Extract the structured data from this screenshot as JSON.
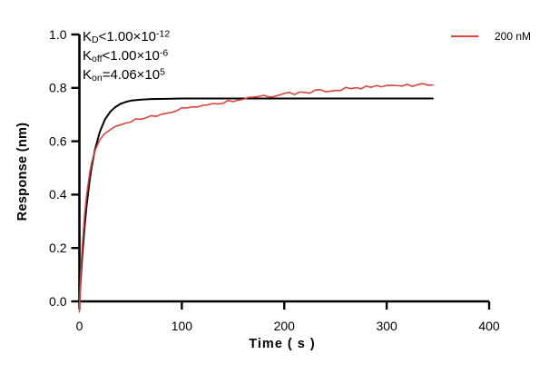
{
  "chart_data": {
    "type": "line",
    "title": "",
    "xlabel": "Time ( s )",
    "ylabel": "Response (nm)",
    "xlim": [
      0,
      400
    ],
    "ylim": [
      0,
      1.0
    ],
    "xtick_values": [
      0,
      100,
      200,
      300,
      400
    ],
    "xtick_labels": [
      "0",
      "100",
      "200",
      "300",
      "400"
    ],
    "ytick_values": [
      0,
      0.2,
      0.4,
      0.6,
      0.8,
      1.0
    ],
    "ytick_labels": [
      "0.0",
      "0.2",
      "0.4",
      "0.6",
      "0.8",
      "1.0"
    ],
    "grid": false,
    "legend_position": "top-right",
    "axis_color": "#000000",
    "annotation_lines": [
      {
        "pre": "K",
        "sub": "D",
        "mid": "<1.00×10",
        "sup": "-12"
      },
      {
        "pre": "K",
        "sub": "off",
        "mid": "<1.00×10",
        "sup": "-6"
      },
      {
        "pre": "K",
        "sub": "on",
        "mid": "=4.06×10",
        "sup": "5"
      }
    ],
    "series": [
      {
        "name": "200 nM",
        "color": "#d9463e",
        "width": 1.6,
        "noise": 0.006,
        "noise_skip": 11,
        "in_legend": true,
        "points": [
          [
            0,
            -0.04
          ],
          [
            1,
            0.083
          ],
          [
            2,
            0.156
          ],
          [
            3,
            0.218
          ],
          [
            5,
            0.321
          ],
          [
            7,
            0.398
          ],
          [
            10,
            0.481
          ],
          [
            12,
            0.521
          ],
          [
            15,
            0.563
          ],
          [
            20,
            0.606
          ],
          [
            25,
            0.63
          ],
          [
            30,
            0.645
          ],
          [
            35,
            0.655
          ],
          [
            40,
            0.663
          ],
          [
            45,
            0.669
          ],
          [
            50,
            0.675
          ],
          [
            55,
            0.68
          ],
          [
            60,
            0.685
          ],
          [
            65,
            0.69
          ],
          [
            70,
            0.695
          ],
          [
            75,
            0.699
          ],
          [
            80,
            0.703
          ],
          [
            85,
            0.708
          ],
          [
            90,
            0.712
          ],
          [
            95,
            0.716
          ],
          [
            100,
            0.72
          ],
          [
            105,
            0.724
          ],
          [
            110,
            0.727
          ],
          [
            115,
            0.731
          ],
          [
            120,
            0.734
          ],
          [
            125,
            0.737
          ],
          [
            130,
            0.74
          ],
          [
            135,
            0.743
          ],
          [
            140,
            0.746
          ],
          [
            145,
            0.749
          ],
          [
            150,
            0.752
          ],
          [
            155,
            0.755
          ],
          [
            160,
            0.757
          ],
          [
            165,
            0.76
          ],
          [
            170,
            0.762
          ],
          [
            175,
            0.765
          ],
          [
            180,
            0.767
          ],
          [
            185,
            0.769
          ],
          [
            190,
            0.771
          ],
          [
            195,
            0.774
          ],
          [
            200,
            0.776
          ],
          [
            205,
            0.778
          ],
          [
            210,
            0.779
          ],
          [
            215,
            0.781
          ],
          [
            220,
            0.783
          ],
          [
            225,
            0.785
          ],
          [
            230,
            0.787
          ],
          [
            235,
            0.788
          ],
          [
            240,
            0.79
          ],
          [
            245,
            0.791
          ],
          [
            250,
            0.793
          ],
          [
            255,
            0.794
          ],
          [
            260,
            0.796
          ],
          [
            265,
            0.797
          ],
          [
            270,
            0.799
          ],
          [
            275,
            0.8
          ],
          [
            280,
            0.801
          ],
          [
            285,
            0.802
          ],
          [
            290,
            0.803
          ],
          [
            295,
            0.805
          ],
          [
            300,
            0.806
          ],
          [
            305,
            0.807
          ],
          [
            310,
            0.808
          ],
          [
            315,
            0.809
          ],
          [
            320,
            0.81
          ],
          [
            325,
            0.811
          ],
          [
            330,
            0.811
          ],
          [
            335,
            0.812
          ],
          [
            340,
            0.813
          ],
          [
            345,
            0.814
          ]
        ]
      },
      {
        "name": "fit",
        "color": "#000000",
        "width": 2.0,
        "noise": 0,
        "noise_skip": 0,
        "in_legend": false,
        "points": [
          [
            0,
            0
          ],
          [
            1,
            0.066
          ],
          [
            2,
            0.126
          ],
          [
            3,
            0.181
          ],
          [
            5,
            0.278
          ],
          [
            7,
            0.358
          ],
          [
            10,
            0.454
          ],
          [
            12,
            0.505
          ],
          [
            15,
            0.566
          ],
          [
            20,
            0.636
          ],
          [
            25,
            0.682
          ],
          [
            30,
            0.71
          ],
          [
            35,
            0.728
          ],
          [
            40,
            0.74
          ],
          [
            45,
            0.747
          ],
          [
            50,
            0.752
          ],
          [
            60,
            0.756
          ],
          [
            70,
            0.758
          ],
          [
            85,
            0.759
          ],
          [
            100,
            0.76
          ],
          [
            150,
            0.76
          ],
          [
            200,
            0.76
          ],
          [
            250,
            0.76
          ],
          [
            300,
            0.76
          ],
          [
            345,
            0.76
          ]
        ]
      }
    ]
  }
}
